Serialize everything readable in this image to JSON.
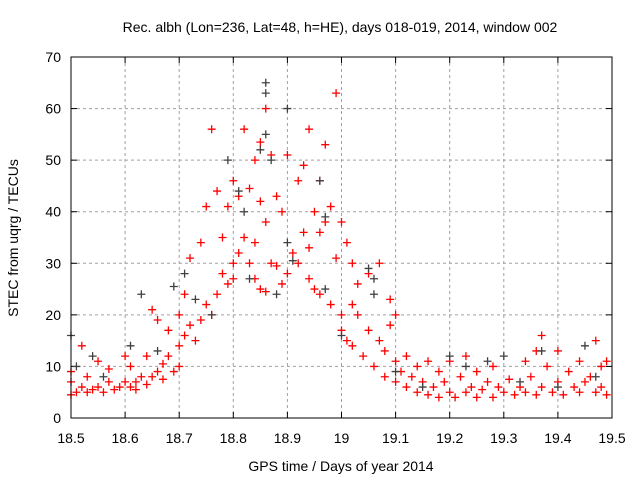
{
  "chart_data": {
    "type": "scatter",
    "title": "Rec. albh (Lon=236, Lat=48, h=HE), days 018-019, 2014, window 002",
    "xlabel": "GPS time / Days of year 2014",
    "ylabel": "STEC from uqrg / TECUs",
    "xlim": [
      18.5,
      19.5
    ],
    "ylim": [
      0,
      70
    ],
    "xticks": [
      "18.5",
      "18.6",
      "18.7",
      "18.8",
      "18.9",
      "19",
      "19.1",
      "19.2",
      "19.3",
      "19.4",
      "19.5"
    ],
    "xtick_values": [
      18.5,
      18.6,
      18.7,
      18.8,
      18.9,
      19.0,
      19.1,
      19.2,
      19.3,
      19.4,
      19.5
    ],
    "yticks": [
      "0",
      "10",
      "20",
      "30",
      "40",
      "50",
      "60",
      "70"
    ],
    "ytick_values": [
      0,
      10,
      20,
      30,
      40,
      50,
      60,
      70
    ],
    "grid": true,
    "series": [
      {
        "name": "red",
        "color": "#ff0000",
        "points": [
          [
            18.5,
            4.5
          ],
          [
            18.5,
            7
          ],
          [
            18.5,
            9
          ],
          [
            18.51,
            5
          ],
          [
            18.52,
            14
          ],
          [
            18.52,
            6
          ],
          [
            18.53,
            5
          ],
          [
            18.53,
            8
          ],
          [
            18.54,
            5.5
          ],
          [
            18.55,
            11
          ],
          [
            18.55,
            6
          ],
          [
            18.56,
            5
          ],
          [
            18.57,
            7
          ],
          [
            18.57,
            9.5
          ],
          [
            18.58,
            5.5
          ],
          [
            18.59,
            6
          ],
          [
            18.6,
            12
          ],
          [
            18.6,
            7
          ],
          [
            18.61,
            6
          ],
          [
            18.61,
            10
          ],
          [
            18.62,
            7
          ],
          [
            18.62,
            5.5
          ],
          [
            18.63,
            8
          ],
          [
            18.64,
            12
          ],
          [
            18.64,
            6.5
          ],
          [
            18.65,
            21
          ],
          [
            18.65,
            8
          ],
          [
            18.66,
            19
          ],
          [
            18.66,
            9
          ],
          [
            18.67,
            10.5
          ],
          [
            18.67,
            7.5
          ],
          [
            18.68,
            17
          ],
          [
            18.68,
            12
          ],
          [
            18.69,
            9
          ],
          [
            18.7,
            20
          ],
          [
            18.7,
            14
          ],
          [
            18.7,
            10
          ],
          [
            18.71,
            24
          ],
          [
            18.71,
            16
          ],
          [
            18.72,
            31
          ],
          [
            18.72,
            18
          ],
          [
            18.73,
            15
          ],
          [
            18.74,
            34
          ],
          [
            18.74,
            19
          ],
          [
            18.75,
            41
          ],
          [
            18.75,
            22
          ],
          [
            18.76,
            56
          ],
          [
            18.76,
            20
          ],
          [
            18.77,
            44
          ],
          [
            18.77,
            24
          ],
          [
            18.78,
            35
          ],
          [
            18.78,
            28
          ],
          [
            18.79,
            41
          ],
          [
            18.79,
            26
          ],
          [
            18.8,
            46
          ],
          [
            18.8,
            30
          ],
          [
            18.8,
            27
          ],
          [
            18.81,
            43
          ],
          [
            18.81,
            32
          ],
          [
            18.82,
            56
          ],
          [
            18.82,
            35
          ],
          [
            18.83,
            44.5
          ],
          [
            18.83,
            30
          ],
          [
            18.84,
            50
          ],
          [
            18.84,
            34
          ],
          [
            18.84,
            27
          ],
          [
            18.85,
            53.5
          ],
          [
            18.85,
            42
          ],
          [
            18.85,
            25
          ],
          [
            18.86,
            60
          ],
          [
            18.86,
            38
          ],
          [
            18.86,
            24.5
          ],
          [
            18.87,
            51
          ],
          [
            18.87,
            30
          ],
          [
            18.88,
            43
          ],
          [
            18.88,
            29.5
          ],
          [
            18.89,
            40
          ],
          [
            18.89,
            26
          ],
          [
            18.9,
            51
          ],
          [
            18.9,
            28
          ],
          [
            18.91,
            32
          ],
          [
            18.92,
            46
          ],
          [
            18.92,
            30
          ],
          [
            18.93,
            49
          ],
          [
            18.93,
            36
          ],
          [
            18.94,
            56
          ],
          [
            18.94,
            33
          ],
          [
            18.94,
            27
          ],
          [
            18.95,
            40
          ],
          [
            18.95,
            25
          ],
          [
            18.96,
            46
          ],
          [
            18.96,
            36
          ],
          [
            18.96,
            24
          ],
          [
            18.97,
            53
          ],
          [
            18.97,
            38
          ],
          [
            18.98,
            41
          ],
          [
            18.98,
            22
          ],
          [
            18.99,
            63
          ],
          [
            18.99,
            31
          ],
          [
            19.0,
            38
          ],
          [
            19.0,
            20
          ],
          [
            19.0,
            17
          ],
          [
            19.01,
            34
          ],
          [
            19.01,
            15
          ],
          [
            19.02,
            30
          ],
          [
            19.02,
            22
          ],
          [
            19.02,
            14
          ],
          [
            19.03,
            26
          ],
          [
            19.03,
            20
          ],
          [
            19.04,
            12
          ],
          [
            19.05,
            28
          ],
          [
            19.05,
            17
          ],
          [
            19.06,
            10
          ],
          [
            19.07,
            30
          ],
          [
            19.07,
            15
          ],
          [
            19.08,
            8
          ],
          [
            19.08,
            13
          ],
          [
            19.09,
            23
          ],
          [
            19.09,
            18
          ],
          [
            19.1,
            20
          ],
          [
            19.1,
            7
          ],
          [
            19.1,
            11
          ],
          [
            19.11,
            9
          ],
          [
            19.12,
            6
          ],
          [
            19.12,
            12
          ],
          [
            19.13,
            8
          ],
          [
            19.14,
            5
          ],
          [
            19.14,
            10
          ],
          [
            19.15,
            7
          ],
          [
            19.16,
            4.5
          ],
          [
            19.16,
            11
          ],
          [
            19.17,
            6
          ],
          [
            19.18,
            9
          ],
          [
            19.18,
            4
          ],
          [
            19.19,
            7
          ],
          [
            19.2,
            5
          ],
          [
            19.2,
            11
          ],
          [
            19.21,
            4
          ],
          [
            19.22,
            8
          ],
          [
            19.23,
            12
          ],
          [
            19.23,
            5
          ],
          [
            19.24,
            6
          ],
          [
            19.25,
            4
          ],
          [
            19.25,
            9
          ],
          [
            19.26,
            5.5
          ],
          [
            19.27,
            7
          ],
          [
            19.28,
            4
          ],
          [
            19.28,
            10
          ],
          [
            19.29,
            6
          ],
          [
            19.3,
            5
          ],
          [
            19.31,
            7.5
          ],
          [
            19.32,
            4.5
          ],
          [
            19.33,
            6
          ],
          [
            19.34,
            11
          ],
          [
            19.34,
            5
          ],
          [
            19.35,
            8
          ],
          [
            19.36,
            13
          ],
          [
            19.36,
            4.5
          ],
          [
            19.37,
            16
          ],
          [
            19.37,
            6
          ],
          [
            19.38,
            10
          ],
          [
            19.39,
            5
          ],
          [
            19.4,
            7
          ],
          [
            19.4,
            13
          ],
          [
            19.41,
            4.5
          ],
          [
            19.42,
            9
          ],
          [
            19.43,
            6
          ],
          [
            19.44,
            5
          ],
          [
            19.44,
            11
          ],
          [
            19.45,
            7
          ],
          [
            19.46,
            8
          ],
          [
            19.47,
            15
          ],
          [
            19.47,
            5
          ],
          [
            19.48,
            10
          ],
          [
            19.48,
            6
          ],
          [
            19.49,
            11
          ],
          [
            19.49,
            4.5
          ]
        ]
      },
      {
        "name": "black",
        "color": "#404040",
        "points": [
          [
            18.5,
            16
          ],
          [
            18.51,
            10
          ],
          [
            18.54,
            12
          ],
          [
            18.56,
            8
          ],
          [
            18.61,
            14
          ],
          [
            18.63,
            24
          ],
          [
            18.66,
            13
          ],
          [
            18.69,
            25.5
          ],
          [
            18.71,
            28
          ],
          [
            18.73,
            23
          ],
          [
            18.76,
            20
          ],
          [
            18.79,
            50
          ],
          [
            18.81,
            44
          ],
          [
            18.82,
            40
          ],
          [
            18.83,
            27
          ],
          [
            18.85,
            52
          ],
          [
            18.86,
            65
          ],
          [
            18.86,
            63
          ],
          [
            18.86,
            55
          ],
          [
            18.87,
            50
          ],
          [
            18.88,
            24
          ],
          [
            18.9,
            60
          ],
          [
            18.9,
            34
          ],
          [
            18.91,
            30.5
          ],
          [
            18.96,
            46
          ],
          [
            18.97,
            39
          ],
          [
            18.97,
            25
          ],
          [
            19.0,
            16
          ],
          [
            19.05,
            29
          ],
          [
            19.06,
            27
          ],
          [
            19.06,
            24
          ],
          [
            19.1,
            9
          ],
          [
            19.15,
            6
          ],
          [
            19.2,
            12
          ],
          [
            19.23,
            10
          ],
          [
            19.27,
            11
          ],
          [
            19.3,
            12
          ],
          [
            19.33,
            7
          ],
          [
            19.37,
            13
          ],
          [
            19.4,
            6
          ],
          [
            19.45,
            14
          ],
          [
            19.47,
            8
          ]
        ]
      }
    ]
  }
}
